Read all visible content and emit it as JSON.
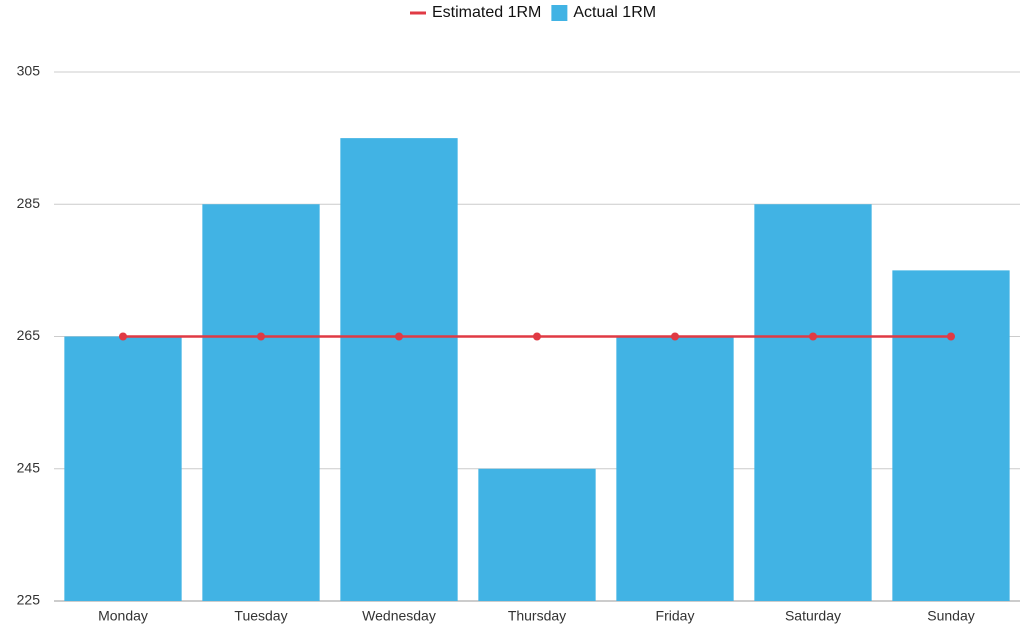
{
  "chart_data": {
    "type": "combo",
    "categories": [
      "Monday",
      "Tuesday",
      "Wednesday",
      "Thursday",
      "Friday",
      "Saturday",
      "Sunday"
    ],
    "series": [
      {
        "name": "Estimated 1RM",
        "type": "line",
        "color": "#e03a44",
        "values": [
          265,
          265,
          265,
          265,
          265,
          265,
          265
        ]
      },
      {
        "name": "Actual 1RM",
        "type": "bar",
        "color": "#41b3e4",
        "values": [
          265,
          285,
          295,
          245,
          265,
          285,
          275
        ]
      }
    ],
    "ylim": [
      225,
      305
    ],
    "yticks": [
      225,
      245,
      265,
      285,
      305
    ],
    "grid": true
  }
}
